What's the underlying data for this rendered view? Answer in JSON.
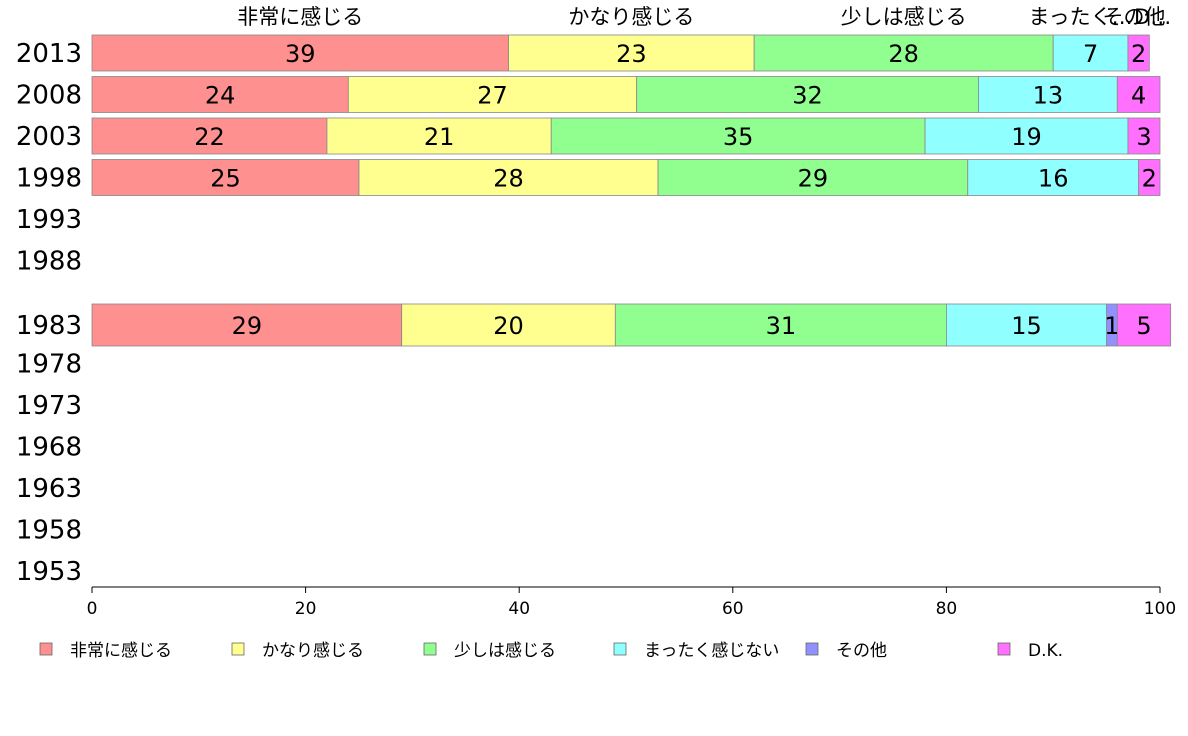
{
  "chart_data": {
    "type": "bar",
    "orientation": "horizontal",
    "stacked": true,
    "categories": [
      "2013",
      "2008",
      "2003",
      "1998",
      "1993",
      "1988",
      "1983",
      "1978",
      "1973",
      "1968",
      "1963",
      "1958",
      "1953"
    ],
    "series": [
      {
        "name": "非常に感じる",
        "color": "#ff9090",
        "values": [
          39,
          24,
          22,
          25,
          null,
          null,
          29,
          null,
          null,
          null,
          null,
          null,
          null
        ]
      },
      {
        "name": "かなり感じる",
        "color": "#ffff90",
        "values": [
          23,
          27,
          21,
          28,
          null,
          null,
          20,
          null,
          null,
          null,
          null,
          null,
          null
        ]
      },
      {
        "name": "少しは感じる",
        "color": "#90ff90",
        "values": [
          28,
          32,
          35,
          29,
          null,
          null,
          31,
          null,
          null,
          null,
          null,
          null,
          null
        ]
      },
      {
        "name": "まったく感じない",
        "color": "#90ffff",
        "values": [
          7,
          13,
          19,
          16,
          null,
          null,
          15,
          null,
          null,
          null,
          null,
          null,
          null
        ]
      },
      {
        "name": "その他",
        "color": "#9090ff",
        "values": [
          0,
          0,
          0,
          0,
          null,
          null,
          1,
          null,
          null,
          null,
          null,
          null,
          null
        ]
      },
      {
        "name": "D.K.",
        "color": "#ff70ff",
        "values": [
          2,
          4,
          3,
          2,
          null,
          null,
          5,
          null,
          null,
          null,
          null,
          null,
          null
        ]
      }
    ],
    "top_labels": [
      "非常に感じる",
      "かなり感じる",
      "少しは感じる",
      "まったく…",
      "その他",
      "D…"
    ],
    "xlim": [
      0,
      100
    ],
    "xticks": [
      0,
      20,
      40,
      60,
      80,
      100
    ],
    "legend_position": "bottom",
    "grid": false
  }
}
